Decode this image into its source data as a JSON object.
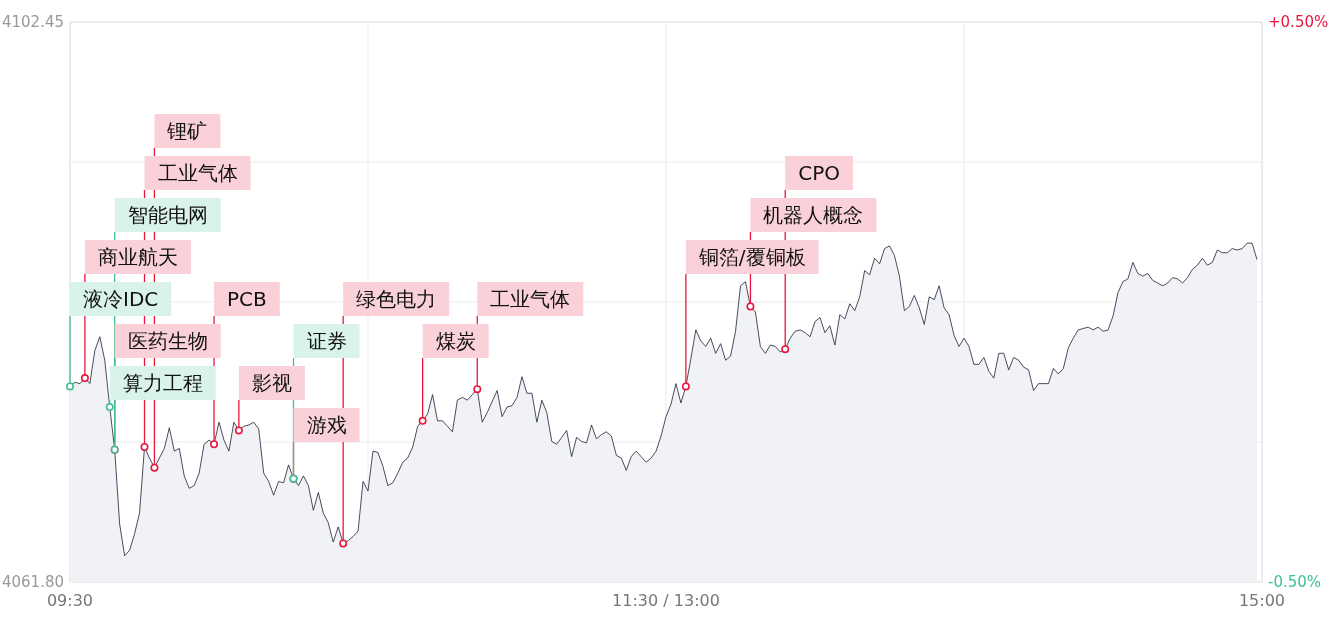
{
  "chart_data": {
    "type": "area",
    "grid": true,
    "categories": [
      "09:30",
      null,
      null,
      null,
      null,
      null,
      null,
      null,
      null,
      null,
      null,
      null,
      null,
      null,
      null,
      null,
      null,
      null,
      null,
      null,
      null,
      null,
      null,
      null,
      null,
      null,
      null,
      null,
      null,
      null,
      null,
      null,
      null,
      null,
      null,
      null,
      null,
      null,
      null,
      null,
      null,
      null,
      null,
      null,
      null,
      null,
      null,
      null,
      null,
      null,
      null,
      null,
      null,
      null,
      null,
      null,
      null,
      null,
      null,
      null,
      null,
      null,
      null,
      null,
      null,
      null,
      null,
      null,
      null,
      null,
      null,
      null,
      null,
      null,
      null,
      null,
      null,
      null,
      null,
      null,
      null,
      null,
      null,
      null,
      null,
      null,
      null,
      null,
      null,
      null,
      null,
      null,
      null,
      null,
      null,
      null,
      null,
      null,
      null,
      null,
      null,
      null,
      null,
      null,
      null,
      null,
      null,
      null,
      null,
      null,
      null,
      null,
      null,
      null,
      null,
      null,
      null,
      null,
      null,
      null,
      "11:30 / 13:00",
      null,
      null,
      null,
      null,
      null,
      null,
      null,
      null,
      null,
      null,
      null,
      null,
      null,
      null,
      null,
      null,
      null,
      null,
      null,
      null,
      null,
      null,
      null,
      null,
      null,
      null,
      null,
      null,
      null,
      null,
      null,
      null,
      null,
      null,
      null,
      null,
      null,
      null,
      null,
      null,
      null,
      null,
      null,
      null,
      null,
      null,
      null,
      null,
      null,
      null,
      null,
      null,
      null,
      null,
      null,
      null,
      null,
      null,
      null,
      null,
      null,
      null,
      null,
      null,
      null,
      null,
      null,
      null,
      null,
      null,
      null,
      null,
      null,
      null,
      null,
      null,
      null,
      null,
      null,
      null,
      null,
      null,
      null,
      null,
      null,
      null,
      null,
      null,
      null,
      null,
      null,
      null,
      null,
      null,
      null,
      null,
      null,
      null,
      null,
      null,
      null,
      null,
      null,
      null,
      null,
      null,
      null,
      null,
      null,
      null,
      null,
      null,
      null,
      null,
      null,
      null,
      null,
      null,
      null,
      "15:00"
    ],
    "ylim": [
      4061.8,
      4102.45
    ],
    "yticks": [
      {
        "value": 4061.8,
        "label": "4061.80"
      },
      {
        "value": 4071.9625,
        "label": null
      },
      {
        "value": 4082.125,
        "label": null
      },
      {
        "value": 4092.2875,
        "label": null
      },
      {
        "value": 4102.45,
        "label": "4102.45"
      }
    ],
    "y2lim": [
      -0.5,
      0.5
    ],
    "y2ticks": [
      {
        "value": -0.5,
        "label": "-0.50%"
      },
      {
        "value": 0.5,
        "label": "+0.50%"
      }
    ],
    "series": [
      {
        "color": "#1e2035",
        "values": [
          4076.0,
          4076.3,
          4076.2,
          4076.6,
          4076.2,
          4078.6,
          4079.6,
          4077.9,
          4074.5,
          4071.4,
          4066.0,
          4063.7,
          4064.1,
          4065.3,
          4066.8,
          4071.6,
          4070.8,
          4070.1,
          4070.8,
          4071.5,
          4073.0,
          4071.3,
          4071.5,
          4069.5,
          4068.6,
          4068.8,
          4069.7,
          4071.8,
          4072.1,
          4071.8,
          4073.4,
          4072.1,
          4071.3,
          4073.4,
          4072.8,
          4073.1,
          4073.2,
          4073.4,
          4072.9,
          4069.7,
          4069.1,
          4068.1,
          4069.1,
          4069.0,
          4070.3,
          4069.3,
          4068.8,
          4069.5,
          4068.8,
          4067.0,
          4068.3,
          4066.8,
          4066.1,
          4064.7,
          4065.8,
          4064.6,
          4064.8,
          4065.1,
          4065.5,
          4069.1,
          4068.4,
          4071.3,
          4071.2,
          4070.2,
          4068.8,
          4069.0,
          4069.7,
          4070.5,
          4070.8,
          4071.6,
          4073.1,
          4073.5,
          4074.0,
          4075.4,
          4073.5,
          4073.5,
          4073.1,
          4072.7,
          4075.0,
          4075.2,
          4075.0,
          4075.4,
          4075.8,
          4073.4,
          4074.1,
          4074.9,
          4075.7,
          4073.8,
          4074.5,
          4074.6,
          4075.2,
          4076.7,
          4075.5,
          4075.5,
          4073.4,
          4075.0,
          4074.1,
          4072.0,
          4071.8,
          4072.3,
          4072.8,
          4070.9,
          4072.3,
          4072.0,
          4071.9,
          4073.2,
          4072.2,
          4072.5,
          4072.7,
          4072.4,
          4071.0,
          4070.8,
          4069.9,
          4070.9,
          4071.3,
          4070.9,
          4070.5,
          4070.8,
          4071.3,
          4072.4,
          4073.8,
          4074.7,
          4076.2,
          4074.8,
          4076.0,
          4078.0,
          4080.1,
          4079.3,
          4078.9,
          4079.5,
          4078.4,
          4079.1,
          4077.9,
          4078.2,
          4080.0,
          4083.3,
          4083.6,
          4081.8,
          4081.4,
          4078.9,
          4078.4,
          4079.0,
          4078.9,
          4078.5,
          4078.7,
          4079.5,
          4080.0,
          4080.1,
          4079.9,
          4079.6,
          4080.7,
          4081.0,
          4079.9,
          4080.4,
          4079.0,
          4081.2,
          4080.9,
          4082.0,
          4081.5,
          4082.5,
          4084.4,
          4084.1,
          4085.3,
          4084.9,
          4086.0,
          4086.2,
          4085.5,
          4084.0,
          4081.5,
          4081.8,
          4082.6,
          4081.7,
          4080.5,
          4082.5,
          4082.3,
          4083.3,
          4081.7,
          4081.2,
          4079.7,
          4078.9,
          4079.5,
          4078.9,
          4077.6,
          4077.6,
          4078.1,
          4077.1,
          4076.6,
          4078.4,
          4078.4,
          4077.2,
          4078.1,
          4077.9,
          4077.4,
          4077.2,
          4075.7,
          4076.2,
          4076.2,
          4076.2,
          4077.3,
          4076.9,
          4077.3,
          4078.8,
          4079.5,
          4080.1,
          4080.2,
          4080.3,
          4080.1,
          4080.3,
          4080.0,
          4080.1,
          4081.1,
          4082.8,
          4083.6,
          4083.8,
          4085.0,
          4084.2,
          4084.0,
          4084.2,
          4083.7,
          4083.5,
          4083.3,
          4083.5,
          4083.9,
          4083.8,
          4083.5,
          4083.9,
          4084.5,
          4084.8,
          4085.3,
          4084.8,
          4085.0,
          4085.9,
          4085.7,
          4085.7,
          4086.0,
          4085.9,
          4086.0,
          4086.4,
          4086.4,
          4085.2,
          null
        ]
      },
      {
        "type": "scatter",
        "marker": "circle",
        "color": "#e8173b",
        "values": [
          null,
          null,
          null,
          4076.6,
          null,
          null,
          null,
          null,
          null,
          4071.4,
          null,
          null,
          null,
          null,
          null,
          4071.6,
          null,
          4070.1,
          null,
          null,
          null,
          null,
          null,
          null,
          null,
          null,
          null,
          null,
          null,
          4071.8,
          null,
          null,
          null,
          null,
          4072.8,
          null,
          null,
          null,
          null,
          null,
          null,
          null,
          null,
          null,
          null,
          4069.3,
          null,
          null,
          null,
          null,
          null,
          null,
          null,
          null,
          null,
          4064.6,
          null,
          null,
          null,
          null,
          null,
          null,
          null,
          null,
          null,
          null,
          null,
          null,
          null,
          null,
          null,
          4073.5,
          null,
          null,
          null,
          null,
          null,
          null,
          null,
          null,
          null,
          null,
          4075.8,
          null,
          null,
          null,
          null,
          null,
          null,
          null,
          null,
          null,
          null,
          null,
          null,
          null,
          null,
          null,
          null,
          null,
          null,
          null,
          null,
          null,
          null,
          null,
          null,
          null,
          null,
          null,
          null,
          null,
          null,
          null,
          null,
          null,
          null,
          null,
          null,
          null,
          null,
          null,
          null,
          null,
          4076.0,
          null,
          null,
          null,
          null,
          null,
          null,
          null,
          null,
          null,
          null,
          null,
          null,
          4081.8,
          null,
          null,
          null,
          null,
          null,
          null,
          4078.7,
          null,
          null,
          null,
          null,
          null,
          null,
          null,
          null,
          null,
          null,
          null,
          null,
          null,
          null,
          null,
          null,
          null,
          null,
          null,
          null,
          null,
          null,
          null,
          null,
          null,
          null,
          null,
          null,
          null,
          null,
          null,
          null,
          null,
          null,
          null,
          null,
          null,
          null,
          null,
          null,
          null,
          null,
          null,
          null,
          null,
          null,
          null,
          null,
          null,
          null,
          null,
          null,
          null,
          null,
          null,
          null,
          null,
          null,
          null,
          null,
          null,
          null,
          null,
          null,
          null,
          null,
          null,
          null,
          null,
          null,
          null,
          null,
          null,
          null,
          null,
          null,
          null,
          null,
          null,
          null,
          null,
          null,
          null,
          null,
          null,
          null,
          null,
          null,
          null,
          null,
          null,
          null,
          null,
          null,
          null,
          null
        ],
        "value_labels": [
          null,
          null,
          null,
          "商业航天",
          null,
          null,
          null,
          null,
          null,
          "医药生物",
          null,
          null,
          null,
          null,
          null,
          "工业气体",
          null,
          "锂矿",
          null,
          null,
          null,
          null,
          null,
          null,
          null,
          null,
          null,
          null,
          null,
          "PCB",
          null,
          null,
          null,
          null,
          "影视",
          null,
          null,
          null,
          null,
          null,
          null,
          null,
          null,
          null,
          null,
          "游戏",
          null,
          null,
          null,
          null,
          null,
          null,
          null,
          null,
          null,
          "绿色电力",
          null,
          null,
          null,
          null,
          null,
          null,
          null,
          null,
          null,
          null,
          null,
          null,
          null,
          null,
          null,
          "煤炭",
          null,
          null,
          null,
          null,
          null,
          null,
          null,
          null,
          null,
          null,
          "工业气体",
          null,
          null,
          null,
          null,
          null,
          null,
          null,
          null,
          null,
          null,
          null,
          null,
          null,
          null,
          null,
          null,
          null,
          null,
          null,
          null,
          null,
          null,
          null,
          null,
          null,
          null,
          null,
          null,
          null,
          null,
          null,
          null,
          null,
          null,
          null,
          null,
          null,
          null,
          null,
          null,
          null,
          "铜箔/覆铜板",
          null,
          null,
          null,
          null,
          null,
          null,
          null,
          null,
          null,
          null,
          null,
          null,
          "机器人概念",
          null,
          null,
          null,
          null,
          null,
          null,
          "CPO",
          null,
          null,
          null,
          null,
          null,
          null,
          null,
          null,
          null,
          null,
          null,
          null,
          null,
          null,
          null,
          null,
          null,
          null,
          null,
          null,
          null,
          null,
          null,
          null,
          null,
          null,
          null,
          null,
          null,
          null,
          null,
          null,
          null,
          null,
          null,
          null,
          null,
          null,
          null,
          null,
          null,
          null,
          null,
          null,
          null,
          null,
          null,
          null,
          null,
          null,
          null,
          null,
          null,
          null,
          null,
          null,
          null,
          null,
          null,
          null,
          null,
          null,
          null,
          null,
          null,
          null,
          null,
          null,
          null,
          null,
          null,
          null,
          null,
          null,
          null,
          null,
          null,
          null,
          null,
          null,
          null,
          null,
          null,
          null,
          null,
          null,
          null,
          null,
          null,
          null,
          null,
          null,
          null,
          null,
          null,
          null
        ]
      },
      {
        "type": "scatter",
        "marker": "circle",
        "color": "#3fbf95",
        "values": [
          4076.0,
          null,
          null,
          null,
          null,
          null,
          null,
          null,
          4074.5,
          4071.4,
          null,
          null,
          null,
          null,
          null,
          null,
          null,
          null,
          null,
          null,
          null,
          null,
          null,
          null,
          null,
          null,
          null,
          null,
          null,
          null,
          null,
          null,
          null,
          null,
          null,
          null,
          null,
          null,
          null,
          null,
          null,
          null,
          null,
          null,
          null,
          4069.3,
          null,
          null,
          null,
          null,
          null,
          null,
          null,
          null,
          null,
          null,
          null,
          null,
          null,
          null,
          null,
          null,
          null,
          null,
          null,
          null,
          null,
          null,
          null,
          null,
          null,
          null,
          null,
          null,
          null,
          null,
          null,
          null,
          null,
          null,
          null,
          null,
          null,
          null,
          null,
          null,
          null,
          null,
          null,
          null,
          null,
          null,
          null,
          null,
          null,
          null,
          null,
          null,
          null,
          null,
          null,
          null,
          null,
          null,
          null,
          null,
          null,
          null,
          null,
          null,
          null,
          null,
          null,
          null,
          null,
          null,
          null,
          null,
          null,
          null,
          null,
          null,
          null,
          null,
          null,
          null,
          null,
          null,
          null,
          null,
          null,
          null,
          null,
          null,
          null,
          null,
          null,
          null,
          null,
          null,
          null,
          null,
          null,
          null,
          null,
          null,
          null,
          null,
          null,
          null,
          null,
          null,
          null,
          null,
          null,
          null,
          null,
          null,
          null,
          null,
          null,
          null,
          null,
          null,
          null,
          null,
          null,
          null,
          null,
          null,
          null,
          null,
          null,
          null,
          null,
          null,
          null,
          null,
          null,
          null,
          null,
          null,
          null,
          null,
          null,
          null,
          null,
          null,
          null,
          null,
          null,
          null,
          null,
          null,
          null,
          null,
          null,
          null,
          null,
          null,
          null,
          null,
          null,
          null,
          null,
          null,
          null,
          null,
          null,
          null,
          null,
          null,
          null,
          null,
          null,
          null,
          null,
          null,
          null,
          null,
          null,
          null,
          null,
          null,
          null,
          null,
          null,
          null,
          null,
          null,
          null,
          null,
          null,
          null,
          null,
          null,
          null,
          null,
          null,
          null,
          null
        ],
        "value_labels": [
          "液冷IDC",
          null,
          null,
          null,
          null,
          null,
          null,
          null,
          "算力工程",
          "智能电网",
          null,
          null,
          null,
          null,
          null,
          null,
          null,
          null,
          null,
          null,
          null,
          null,
          null,
          null,
          null,
          null,
          null,
          null,
          null,
          null,
          null,
          null,
          null,
          null,
          null,
          null,
          null,
          null,
          null,
          null,
          null,
          null,
          null,
          null,
          null,
          "证券",
          null,
          null,
          null,
          null,
          null,
          null,
          null,
          null,
          null,
          null,
          null,
          null,
          null,
          null,
          null,
          null,
          null,
          null,
          null,
          null,
          null,
          null,
          null,
          null,
          null,
          null,
          null,
          null,
          null,
          null,
          null,
          null,
          null,
          null,
          null,
          null,
          null,
          null,
          null,
          null,
          null,
          null,
          null,
          null,
          null,
          null,
          null,
          null,
          null,
          null,
          null,
          null,
          null,
          null,
          null,
          null,
          null,
          null,
          null,
          null,
          null,
          null,
          null,
          null,
          null,
          null,
          null,
          null,
          null,
          null,
          null,
          null,
          null,
          null,
          null,
          null,
          null,
          null,
          null,
          null,
          null,
          null,
          null,
          null,
          null,
          null,
          null,
          null,
          null,
          null,
          null,
          null,
          null,
          null,
          null,
          null,
          null,
          null,
          null,
          null,
          null,
          null,
          null,
          null,
          null,
          null,
          null,
          null,
          null,
          null,
          null,
          null,
          null,
          null,
          null,
          null,
          null,
          null,
          null,
          null,
          null,
          null,
          null,
          null,
          null,
          null,
          null,
          null,
          null,
          null,
          null,
          null,
          null,
          null,
          null,
          null,
          null,
          null,
          null,
          null,
          null,
          null,
          null,
          null,
          null,
          null,
          null,
          null,
          null,
          null,
          null,
          null,
          null,
          null,
          null,
          null,
          null,
          null,
          null,
          null,
          null,
          null,
          null,
          null,
          null,
          null,
          null,
          null,
          null,
          null,
          null,
          null,
          null,
          null,
          null,
          null,
          null,
          null,
          null,
          null,
          null,
          null,
          null,
          null,
          null,
          null,
          null,
          null,
          null,
          null,
          null,
          null,
          null,
          null,
          null
        ]
      }
    ]
  }
}
